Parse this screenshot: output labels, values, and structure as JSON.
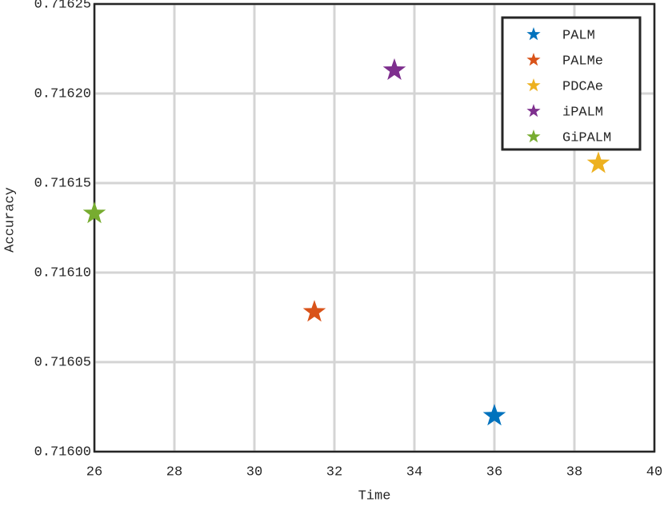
{
  "chart_data": {
    "type": "scatter",
    "xlabel": "Time",
    "ylabel": "Accuracy",
    "xlim": [
      26,
      40
    ],
    "xticks": [
      26,
      28,
      30,
      32,
      34,
      36,
      38,
      40
    ],
    "ylim": [
      0.716,
      0.71625
    ],
    "yticks": [
      {
        "value": 0.716,
        "label": "0.71600"
      },
      {
        "value": 0.71605,
        "label": "0.71605"
      },
      {
        "value": 0.7161,
        "label": "0.71610"
      },
      {
        "value": 0.71615,
        "label": "0.71615"
      },
      {
        "value": 0.7162,
        "label": "0.71620"
      },
      {
        "value": 0.71625,
        "label": "0.71625"
      }
    ],
    "grid": true,
    "legend": "northeast",
    "marker": "star",
    "series": [
      {
        "name": "PALM",
        "color": "#0072bd",
        "x": [
          36.0
        ],
        "values": [
          0.71602
        ]
      },
      {
        "name": "PALMe",
        "color": "#d95319",
        "x": [
          31.5
        ],
        "values": [
          0.716078
        ]
      },
      {
        "name": "PDCAe",
        "color": "#edb120",
        "x": [
          38.6
        ],
        "values": [
          0.716161
        ]
      },
      {
        "name": "iPALM",
        "color": "#7e2f8e",
        "x": [
          33.5
        ],
        "values": [
          0.716213
        ]
      },
      {
        "name": "GiPALM",
        "color": "#77ac30",
        "x": [
          26.0
        ],
        "values": [
          0.716133
        ]
      }
    ]
  }
}
